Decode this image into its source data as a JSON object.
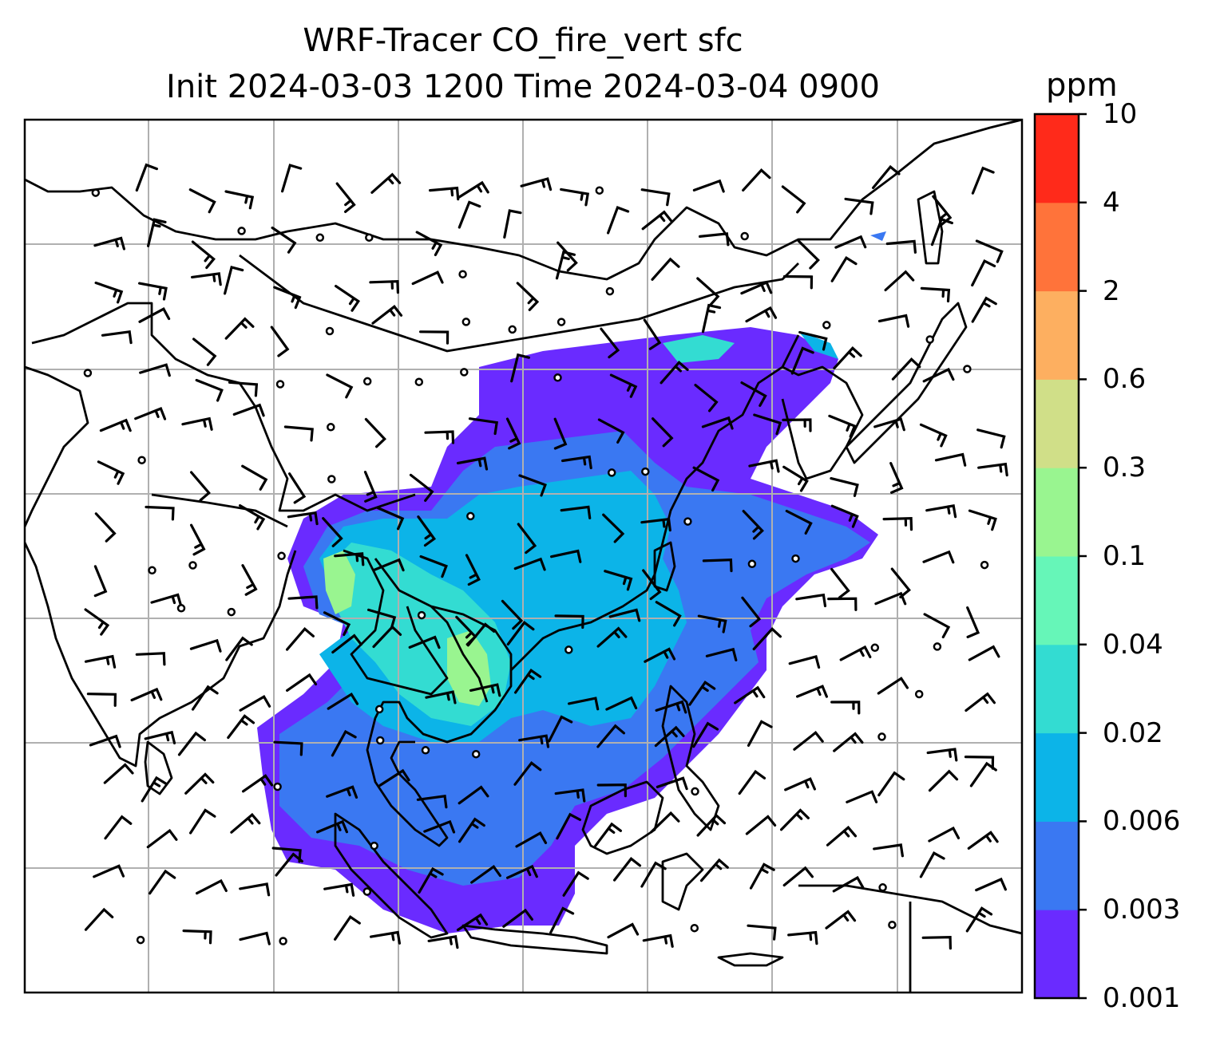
{
  "title": {
    "line1": "WRF-Tracer CO_fire_vert sfc",
    "line2": "Init 2024-03-03 1200 Time 2024-03-04 0900"
  },
  "colorbar": {
    "unit": "ppm",
    "levels": [
      "0.001",
      "0.003",
      "0.006",
      "0.02",
      "0.04",
      "0.1",
      "0.3",
      "0.6",
      "2",
      "4",
      "10"
    ],
    "colors": [
      "#6a2bff",
      "#3a78f2",
      "#0cb4e8",
      "#33dcd2",
      "#66f6b8",
      "#99f590",
      "#d0df88",
      "#fdaf60",
      "#ff733a",
      "#ff2a1a"
    ]
  },
  "map": {
    "region": "South and Southeast Asia",
    "layers": [
      "coastlines",
      "country borders",
      "gridlines",
      "wind barbs",
      "tracer shading"
    ],
    "palette": {
      "coast": "#000000",
      "grid": "#b0b0b0",
      "barb": "#000000"
    }
  }
}
